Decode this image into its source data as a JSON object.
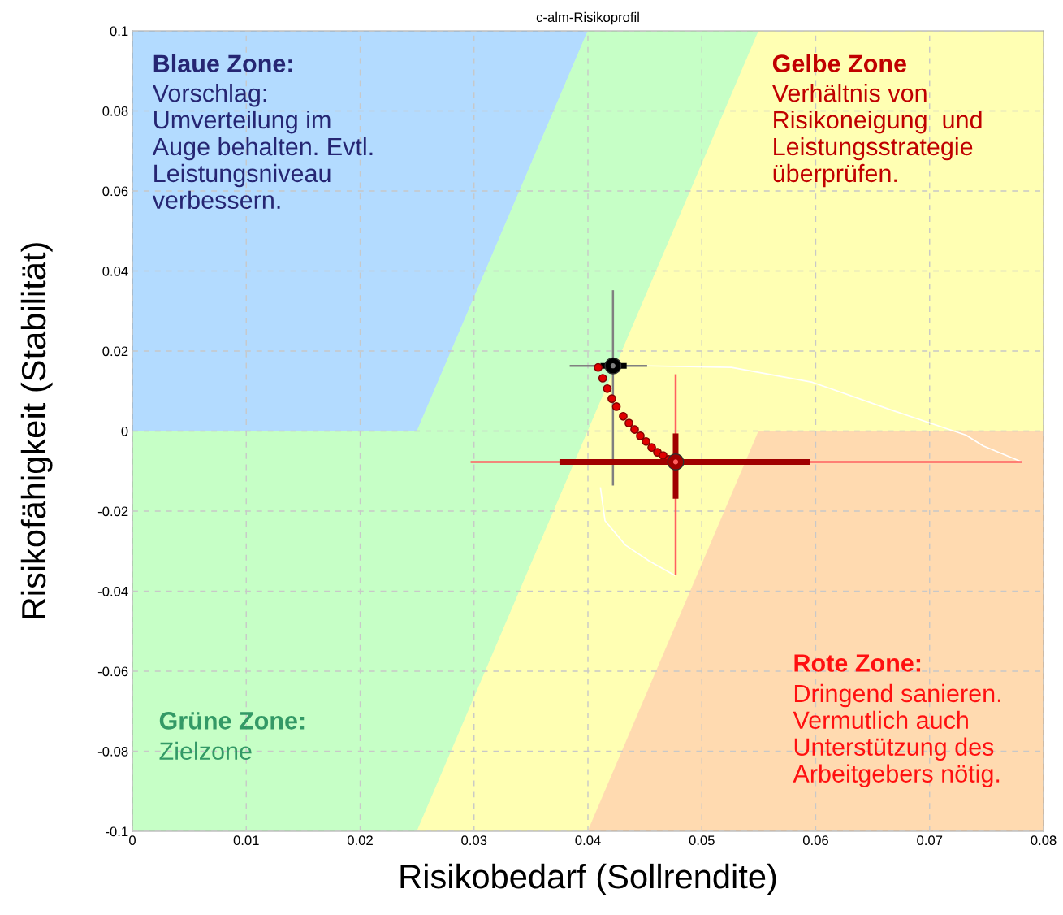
{
  "chart_data": {
    "type": "scatter",
    "title": "c-alm-Risikoprofil",
    "xlabel": "Risikobedarf (Sollrendite)",
    "ylabel": "Risikofähigkeit (Stabilität)",
    "xlim": [
      0,
      0.08
    ],
    "ylim": [
      -0.1,
      0.1
    ],
    "xticks": [
      0,
      0.01,
      0.02,
      0.03,
      0.04,
      0.05,
      0.06,
      0.07,
      0.08
    ],
    "yticks": [
      -0.1,
      -0.08,
      -0.06,
      -0.04,
      -0.02,
      0,
      0.02,
      0.04,
      0.06,
      0.08,
      0.1
    ],
    "grid": true,
    "legend": false,
    "series": [
      {
        "type": "line",
        "color": "#ffffff",
        "marker": "none",
        "line_style": "solid",
        "x": [
          0.0452,
          0.0526,
          0.0597,
          0.0668,
          0.0732,
          0.0747,
          0.0781
        ],
        "values": [
          0.0163,
          0.0159,
          0.0122,
          0.0051,
          -0.001,
          -0.0037,
          -0.0077
        ]
      },
      {
        "type": "line",
        "color": "#ffffff",
        "marker": "none",
        "line_style": "solid",
        "x": [
          0.0411,
          0.0415,
          0.0433,
          0.0454,
          0.0476
        ],
        "values": [
          -0.0142,
          -0.0224,
          -0.0285,
          -0.0325,
          -0.036
        ]
      },
      {
        "color": "#808080",
        "marker": "circle",
        "x": [
          0.0422
        ],
        "values": [
          0.0163
        ],
        "errors": [
          [
            -0.0136,
            0.0352
          ]
        ],
        "xerrors": [
          [
            0.0384,
            0.0452
          ]
        ]
      },
      {
        "color": "#000000",
        "marker": "circle",
        "x": [
          0.0422
        ],
        "values": [
          0.0163
        ],
        "xerrors": [
          [
            0.0411,
            0.0434
          ]
        ]
      },
      {
        "color": "#ff6060",
        "marker": "circle",
        "x": [
          0.0477
        ],
        "values": [
          -0.0077
        ],
        "errors": [
          [
            -0.036,
            0.0142
          ]
        ],
        "xerrors": [
          [
            0.0297,
            0.0781
          ]
        ]
      },
      {
        "color": "#e00000",
        "marker": "circle",
        "x": [
          0.0409,
          0.0413,
          0.0417,
          0.0421,
          0.0425,
          0.0431,
          0.0436,
          0.0441,
          0.0446,
          0.0451,
          0.0456,
          0.0461,
          0.0466,
          0.0471
        ],
        "values": [
          0.0159,
          0.0132,
          0.0106,
          0.0081,
          0.0061,
          0.0037,
          0.002,
          0.0004,
          -0.0012,
          -0.0026,
          -0.0041,
          -0.0053,
          -0.0061,
          -0.0071
        ]
      },
      {
        "color": "#a00000",
        "marker": "circle",
        "x": [
          0.0477
        ],
        "values": [
          -0.0077
        ],
        "errors": [
          [
            -0.0169,
            -0.0006
          ]
        ],
        "xerrors": [
          [
            0.0375,
            0.0595
          ]
        ]
      }
    ],
    "annotations": [
      "Blaue Zone:",
      "Vorschlag:\nUmverteilung im\nAuge behalten. Evtl.\nLeistungsniveau\nverbessern.",
      "Gelbe Zone",
      "Verhältnis von\nRisikoneigung  und\nLeistungsstrategie\nüberprüfen.",
      "Rote Zone:",
      "Dringend sanieren.\nVermutlich auch\nUnterstützung des\nArbeitgebers nötig.",
      "Grüne Zone:",
      "Zielzone"
    ]
  }
}
